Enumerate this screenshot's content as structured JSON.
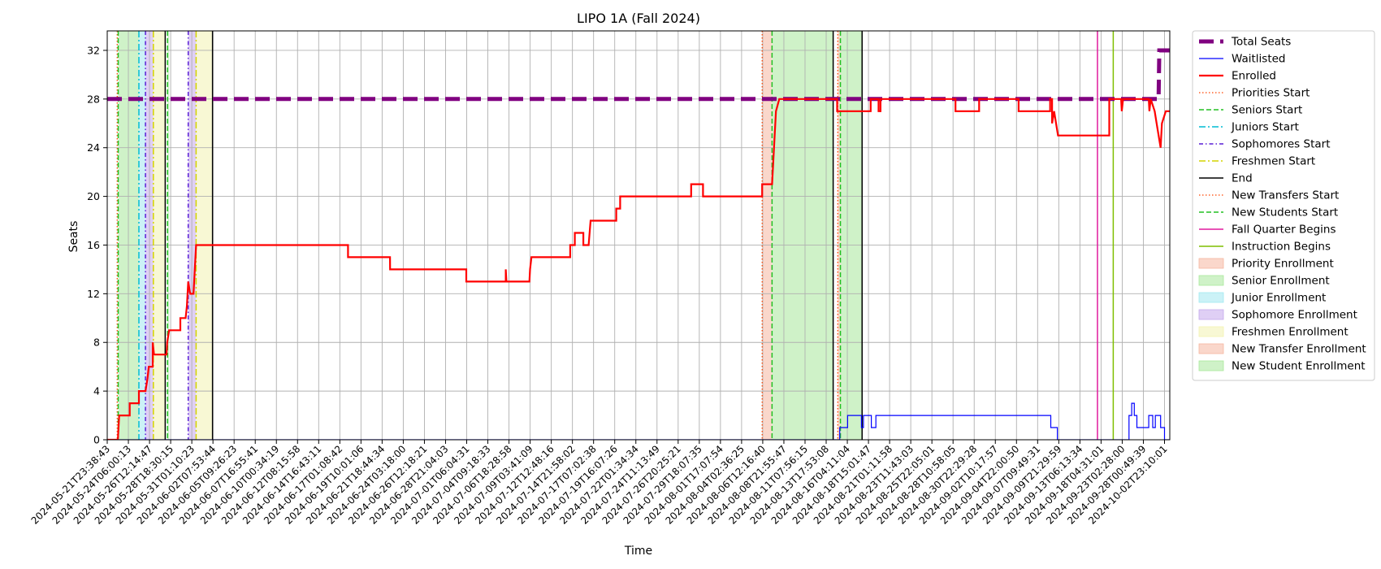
{
  "chart_data": {
    "type": "line",
    "title": "LIPO 1A (Fall 2024)",
    "xlabel": "Time",
    "ylabel": "Seats",
    "ylim": [
      0,
      33.6
    ],
    "yticks": [
      0,
      4,
      8,
      12,
      16,
      20,
      24,
      28,
      32
    ],
    "grid": true,
    "legend_position": "outside-right",
    "x_type": "datetime",
    "xlim": [
      "2024-05-21T23:38:43",
      "2024-10-03T16:00:00"
    ],
    "xtick_labels": [
      "2024-05-21T23:38:43",
      "2024-05-24T06:00:13",
      "2024-05-26T12:14:47",
      "2024-05-28T18:30:15",
      "2024-05-31T01:10:23",
      "2024-06-02T07:53:44",
      "2024-06-05T09:26:23",
      "2024-06-07T16:55:41",
      "2024-06-10T00:34:19",
      "2024-06-12T08:15:58",
      "2024-06-14T16:43:11",
      "2024-06-17T01:08:42",
      "2024-06-19T10:01:06",
      "2024-06-21T18:44:34",
      "2024-06-24T03:18:00",
      "2024-06-26T12:18:21",
      "2024-06-28T21:04:03",
      "2024-07-01T06:04:31",
      "2024-07-04T09:18:33",
      "2024-07-06T18:28:58",
      "2024-07-09T03:41:09",
      "2024-07-12T12:48:16",
      "2024-07-14T21:58:02",
      "2024-07-17T07:02:38",
      "2024-07-19T16:07:26",
      "2024-07-22T01:34:34",
      "2024-07-24T11:13:49",
      "2024-07-26T20:25:21",
      "2024-07-29T18:07:35",
      "2024-08-01T17:07:54",
      "2024-08-04T02:36:25",
      "2024-08-06T12:16:40",
      "2024-08-08T21:55:47",
      "2024-08-11T07:56:15",
      "2024-08-13T17:53:08",
      "2024-08-16T04:11:04",
      "2024-08-18T15:01:47",
      "2024-08-21T01:11:58",
      "2024-08-23T11:43:03",
      "2024-08-25T22:05:01",
      "2024-08-28T10:58:05",
      "2024-08-30T22:29:28",
      "2024-09-02T10:17:57",
      "2024-09-04T22:00:50",
      "2024-09-07T09:49:31",
      "2024-09-09T21:29:59",
      "2024-09-13T06:13:34",
      "2024-09-18T04:31:01",
      "2024-09-23T02:28:00",
      "2024-09-28T00:49:39",
      "2024-10-02T23:10:01"
    ],
    "series": [
      {
        "name": "Total Seats",
        "color": "#800080",
        "style": "dashed-thick",
        "points": [
          [
            "2024-05-21T23:38:43",
            28
          ],
          [
            "2024-10-02T06:00:00",
            28
          ],
          [
            "2024-10-02T08:00:00",
            32
          ],
          [
            "2024-10-03T16:00:00",
            32
          ]
        ]
      },
      {
        "name": "Waitlisted",
        "color": "#0000ff",
        "style": "solid-thin",
        "points": [
          [
            "2024-05-21T23:38:43",
            0
          ],
          [
            "2024-08-22T20:00:00",
            0
          ],
          [
            "2024-08-22T20:00:01",
            1
          ],
          [
            "2024-08-23T20:00:00",
            1
          ],
          [
            "2024-08-23T20:00:01",
            2
          ],
          [
            "2024-08-25T14:00:00",
            2
          ],
          [
            "2024-08-25T14:00:01",
            1
          ],
          [
            "2024-08-25T20:00:00",
            1
          ],
          [
            "2024-08-25T20:00:01",
            2
          ],
          [
            "2024-08-26T20:00:00",
            2
          ],
          [
            "2024-08-26T20:00:01",
            1
          ],
          [
            "2024-08-27T10:00:00",
            1
          ],
          [
            "2024-08-27T10:00:01",
            2
          ],
          [
            "2024-09-18T14:00:00",
            2
          ],
          [
            "2024-09-18T14:00:01",
            1
          ],
          [
            "2024-09-19T10:00:00",
            1
          ],
          [
            "2024-09-19T10:00:01",
            0
          ],
          [
            "2024-09-28T12:00:00",
            0
          ],
          [
            "2024-09-28T12:00:01",
            2
          ],
          [
            "2024-09-28T20:00:00",
            2
          ],
          [
            "2024-09-28T20:00:01",
            3
          ],
          [
            "2024-09-29T04:00:00",
            3
          ],
          [
            "2024-09-29T04:00:01",
            2
          ],
          [
            "2024-09-29T12:00:00",
            2
          ],
          [
            "2024-09-29T12:00:01",
            1
          ],
          [
            "2024-10-01T00:00:00",
            1
          ],
          [
            "2024-10-01T00:00:01",
            2
          ],
          [
            "2024-10-01T12:00:00",
            2
          ],
          [
            "2024-10-01T12:00:01",
            1
          ],
          [
            "2024-10-01T20:00:00",
            1
          ],
          [
            "2024-10-01T20:00:01",
            2
          ],
          [
            "2024-10-02T12:00:00",
            2
          ],
          [
            "2024-10-02T12:00:01",
            1
          ],
          [
            "2024-10-03T00:00:00",
            1
          ],
          [
            "2024-10-03T00:00:01",
            0
          ],
          [
            "2024-10-03T16:00:00",
            0
          ]
        ]
      },
      {
        "name": "Enrolled",
        "color": "#ff0000",
        "style": "solid-thick",
        "points": [
          [
            "2024-05-21T23:38:43",
            0
          ],
          [
            "2024-05-23T08:00:00",
            0
          ],
          [
            "2024-05-23T10:00:00",
            1
          ],
          [
            "2024-05-23T12:00:00",
            2
          ],
          [
            "2024-05-24T20:00:00",
            2
          ],
          [
            "2024-05-24T20:00:01",
            3
          ],
          [
            "2024-05-26T00:00:00",
            3
          ],
          [
            "2024-05-26T00:00:01",
            4
          ],
          [
            "2024-05-26T20:00:00",
            4
          ],
          [
            "2024-05-27T02:00:00",
            5
          ],
          [
            "2024-05-27T06:00:00",
            6
          ],
          [
            "2024-05-27T18:00:00",
            6
          ],
          [
            "2024-05-27T18:00:01",
            8
          ],
          [
            "2024-05-27T22:00:00",
            7
          ],
          [
            "2024-05-29T12:00:00",
            7
          ],
          [
            "2024-05-29T14:00:00",
            8
          ],
          [
            "2024-05-29T20:00:00",
            9
          ],
          [
            "2024-05-31T06:00:00",
            9
          ],
          [
            "2024-05-31T06:00:01",
            10
          ],
          [
            "2024-05-31T22:00:00",
            10
          ],
          [
            "2024-06-01T02:00:00",
            11
          ],
          [
            "2024-06-01T06:00:00",
            13
          ],
          [
            "2024-06-01T12:00:00",
            12
          ],
          [
            "2024-06-01T22:00:00",
            12
          ],
          [
            "2024-06-02T02:00:00",
            14
          ],
          [
            "2024-06-02T06:00:00",
            16
          ],
          [
            "2024-06-21T12:00:00",
            16
          ],
          [
            "2024-06-21T12:00:01",
            15
          ],
          [
            "2024-06-26T20:00:00",
            15
          ],
          [
            "2024-06-26T20:00:01",
            14
          ],
          [
            "2024-07-06T12:00:00",
            14
          ],
          [
            "2024-07-06T12:00:01",
            13
          ],
          [
            "2024-07-11T12:00:00",
            13
          ],
          [
            "2024-07-11T12:00:01",
            14
          ],
          [
            "2024-07-11T14:00:00",
            13
          ],
          [
            "2024-07-14T12:00:00",
            13
          ],
          [
            "2024-07-14T14:00:00",
            14
          ],
          [
            "2024-07-14T18:00:00",
            15
          ],
          [
            "2024-07-19T16:00:00",
            15
          ],
          [
            "2024-07-19T16:00:01",
            16
          ],
          [
            "2024-07-20T06:00:00",
            16
          ],
          [
            "2024-07-20T06:00:01",
            17
          ],
          [
            "2024-07-21T08:00:00",
            17
          ],
          [
            "2024-07-21T08:00:01",
            16
          ],
          [
            "2024-07-22T00:00:00",
            16
          ],
          [
            "2024-07-22T06:00:00",
            18
          ],
          [
            "2024-07-25T12:00:00",
            18
          ],
          [
            "2024-07-25T12:00:01",
            19
          ],
          [
            "2024-07-26T00:00:00",
            19
          ],
          [
            "2024-07-26T00:00:01",
            20
          ],
          [
            "2024-08-04T00:00:00",
            20
          ],
          [
            "2024-08-04T00:00:01",
            21
          ],
          [
            "2024-08-05T12:00:00",
            21
          ],
          [
            "2024-08-05T12:00:01",
            20
          ],
          [
            "2024-08-13T00:00:00",
            20
          ],
          [
            "2024-08-13T00:00:01",
            21
          ],
          [
            "2024-08-14T06:00:00",
            21
          ],
          [
            "2024-08-14T12:00:00",
            24
          ],
          [
            "2024-08-14T18:00:00",
            27
          ],
          [
            "2024-08-15T04:00:00",
            28
          ],
          [
            "2024-08-22T12:00:00",
            28
          ],
          [
            "2024-08-22T12:00:01",
            27
          ],
          [
            "2024-08-26T18:00:00",
            27
          ],
          [
            "2024-08-26T18:00:01",
            28
          ],
          [
            "2024-08-27T18:00:00",
            28
          ],
          [
            "2024-08-27T18:00:01",
            27
          ],
          [
            "2024-08-28T00:00:00",
            27
          ],
          [
            "2024-08-28T00:00:01",
            28
          ],
          [
            "2024-09-06T12:00:00",
            28
          ],
          [
            "2024-09-06T12:00:01",
            27
          ],
          [
            "2024-09-09T12:00:00",
            27
          ],
          [
            "2024-09-09T12:00:01",
            28
          ],
          [
            "2024-09-14T12:00:00",
            28
          ],
          [
            "2024-09-14T12:00:01",
            27
          ],
          [
            "2024-09-18T12:00:00",
            27
          ],
          [
            "2024-09-18T12:00:01",
            28
          ],
          [
            "2024-09-18T18:00:00",
            28
          ],
          [
            "2024-09-18T18:00:01",
            26
          ],
          [
            "2024-09-19T00:00:00",
            27
          ],
          [
            "2024-09-19T06:00:00",
            26
          ],
          [
            "2024-09-19T12:00:00",
            25
          ],
          [
            "2024-09-26T00:00:00",
            25
          ],
          [
            "2024-09-26T00:00:01",
            28
          ],
          [
            "2024-09-27T12:00:00",
            28
          ],
          [
            "2024-09-27T14:00:00",
            27
          ],
          [
            "2024-09-27T18:00:00",
            28
          ],
          [
            "2024-10-01T00:00:00",
            28
          ],
          [
            "2024-10-01T02:00:00",
            27
          ],
          [
            "2024-10-01T06:00:00",
            28
          ],
          [
            "2024-10-01T18:00:00",
            27
          ],
          [
            "2024-10-02T00:00:00",
            26
          ],
          [
            "2024-10-02T12:00:00",
            24
          ],
          [
            "2024-10-02T16:00:00",
            26
          ],
          [
            "2024-10-03T04:00:00",
            27
          ],
          [
            "2024-10-03T16:00:00",
            27
          ]
        ]
      }
    ],
    "vertical_lines": [
      {
        "name": "Priorities Start",
        "color": "#ff4500",
        "style": "dotted",
        "at": [
          "2024-05-23T06:00:00",
          "2024-08-13T00:00:00"
        ]
      },
      {
        "name": "Seniors Start",
        "color": "#22c022",
        "style": "dashed",
        "at": [
          "2024-05-23T09:00:00",
          "2024-05-29T15:00:00"
        ]
      },
      {
        "name": "Juniors Start",
        "color": "#00bcd4",
        "style": "dashdot",
        "at": [
          "2024-05-26T00:00:00"
        ]
      },
      {
        "name": "Sophomores Start",
        "color": "#5a1fd6",
        "style": "dashdot-dense",
        "at": [
          "2024-05-26T20:00:00",
          "2024-06-01T06:00:00"
        ]
      },
      {
        "name": "Freshmen Start",
        "color": "#d4d400",
        "style": "dashdot",
        "at": [
          "2024-05-27T20:00:00",
          "2024-06-02T06:00:00"
        ]
      },
      {
        "name": "End",
        "color": "#000000",
        "style": "solid",
        "at": [
          "2024-05-29T08:00:00",
          "2024-06-04T08:00:00",
          "2024-08-22T00:00:00",
          "2024-08-25T16:00:00"
        ]
      },
      {
        "name": "New Transfers Start",
        "color": "#ff4500",
        "style": "dotted",
        "at": [
          "2024-08-22T14:00:00"
        ]
      },
      {
        "name": "New Students Start",
        "color": "#22c022",
        "style": "dashed",
        "at": [
          "2024-08-14T06:00:00",
          "2024-08-22T22:00:00"
        ]
      },
      {
        "name": "Fall Quarter Begins",
        "color": "#e0199e",
        "style": "solid",
        "at": [
          "2024-09-24T12:00:00"
        ]
      },
      {
        "name": "Instruction Begins",
        "color": "#7fbf00",
        "style": "solid",
        "at": [
          "2024-09-26T12:00:00"
        ]
      }
    ],
    "shaded_regions": [
      {
        "name": "Priority Enrollment",
        "color": "#f5b7a0",
        "from": "2024-08-13T00:00:00",
        "to": "2024-08-14T06:00:00"
      },
      {
        "name": "Senior Enrollment",
        "color": "#a8e89a",
        "from": "2024-05-23T09:00:00",
        "to": "2024-05-26T00:00:00"
      },
      {
        "name": "Senior Enrollment",
        "color": "#a8e89a",
        "from": "2024-05-29T15:00:00",
        "to": "2024-05-29T20:00:00"
      },
      {
        "name": "Junior Enrollment",
        "color": "#a0e8f0",
        "from": "2024-05-26T00:00:00",
        "to": "2024-05-26T20:00:00"
      },
      {
        "name": "Sophomore Enrollment",
        "color": "#c4a8ec",
        "from": "2024-05-26T20:00:00",
        "to": "2024-05-27T20:00:00"
      },
      {
        "name": "Sophomore Enrollment",
        "color": "#c4a8ec",
        "from": "2024-06-01T06:00:00",
        "to": "2024-06-02T06:00:00"
      },
      {
        "name": "Freshmen Enrollment",
        "color": "#f2f2b0",
        "from": "2024-05-27T20:00:00",
        "to": "2024-05-29T08:00:00"
      },
      {
        "name": "Freshmen Enrollment",
        "color": "#f2f2b0",
        "from": "2024-06-02T06:00:00",
        "to": "2024-06-04T08:00:00"
      },
      {
        "name": "New Student Enrollment",
        "color": "#a8e89a",
        "from": "2024-08-14T06:00:00",
        "to": "2024-08-22T00:00:00"
      },
      {
        "name": "New Transfer Enrollment",
        "color": "#f5b7a0",
        "from": "2024-08-22T14:00:00",
        "to": "2024-08-22T22:00:00"
      },
      {
        "name": "New Student Enrollment",
        "color": "#a8e89a",
        "from": "2024-08-22T22:00:00",
        "to": "2024-08-25T16:00:00"
      }
    ],
    "legend": [
      {
        "label": "Total Seats",
        "kind": "line",
        "color": "#800080",
        "style": "dashed-thick"
      },
      {
        "label": "Waitlisted",
        "kind": "line",
        "color": "#0000ff",
        "style": "solid-thin"
      },
      {
        "label": "Enrolled",
        "kind": "line",
        "color": "#ff0000",
        "style": "solid-thick"
      },
      {
        "label": "Priorities Start",
        "kind": "line",
        "color": "#ff4500",
        "style": "dotted"
      },
      {
        "label": "Seniors Start",
        "kind": "line",
        "color": "#22c022",
        "style": "dashed"
      },
      {
        "label": "Juniors Start",
        "kind": "line",
        "color": "#00bcd4",
        "style": "dashdot"
      },
      {
        "label": "Sophomores Start",
        "kind": "line",
        "color": "#5a1fd6",
        "style": "dashdot-dense"
      },
      {
        "label": "Freshmen Start",
        "kind": "line",
        "color": "#d4d400",
        "style": "dashdot"
      },
      {
        "label": "End",
        "kind": "line",
        "color": "#000000",
        "style": "solid"
      },
      {
        "label": "New Transfers Start",
        "kind": "line",
        "color": "#ff4500",
        "style": "dotted"
      },
      {
        "label": "New Students Start",
        "kind": "line",
        "color": "#22c022",
        "style": "dashed"
      },
      {
        "label": "Fall Quarter Begins",
        "kind": "line",
        "color": "#e0199e",
        "style": "solid"
      },
      {
        "label": "Instruction Begins",
        "kind": "line",
        "color": "#7fbf00",
        "style": "solid"
      },
      {
        "label": "Priority Enrollment",
        "kind": "patch",
        "color": "#f5b7a0"
      },
      {
        "label": "Senior Enrollment",
        "kind": "patch",
        "color": "#a8e89a"
      },
      {
        "label": "Junior Enrollment",
        "kind": "patch",
        "color": "#a0e8f0"
      },
      {
        "label": "Sophomore Enrollment",
        "kind": "patch",
        "color": "#c4a8ec"
      },
      {
        "label": "Freshmen Enrollment",
        "kind": "patch",
        "color": "#f2f2b0"
      },
      {
        "label": "New Transfer Enrollment",
        "kind": "patch",
        "color": "#f5b7a0"
      },
      {
        "label": "New Student Enrollment",
        "kind": "patch",
        "color": "#a8e89a"
      }
    ]
  }
}
